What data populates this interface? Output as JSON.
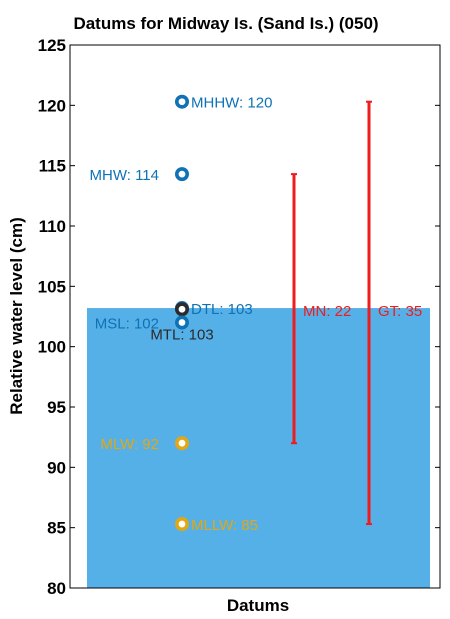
{
  "chart_data": {
    "type": "scatter",
    "title": "Datums for Midway Is. (Sand Is.) (050)",
    "xlabel": "Datums",
    "ylabel": "Relative water level (cm)",
    "ylim": [
      80,
      125
    ],
    "yticks": [
      80,
      85,
      90,
      95,
      100,
      105,
      110,
      115,
      120,
      125
    ],
    "grid": false,
    "background_fill": {
      "level": 103.2,
      "color": "#56b0e8"
    },
    "points": [
      {
        "name": "MHHW",
        "label": "MHHW: 120",
        "y": 120.3,
        "color": "#0e72b5",
        "side": "right"
      },
      {
        "name": "MHW",
        "label": "MHW: 114",
        "y": 114.3,
        "color": "#0e72b5",
        "side": "left"
      },
      {
        "name": "DTL",
        "label": "DTL: 103",
        "y": 103.2,
        "color": "#0e72b5",
        "side": "right"
      },
      {
        "name": "MTL",
        "label": "MTL: 103",
        "y": 103.1,
        "color": "#2b2b2b",
        "side": "below"
      },
      {
        "name": "MSL",
        "label": "MSL: 102",
        "y": 102.0,
        "color": "#0e72b5",
        "side": "left"
      },
      {
        "name": "MLW",
        "label": "MLW: 92",
        "y": 92.0,
        "color": "#e0a814",
        "side": "left"
      },
      {
        "name": "MLLW",
        "label": "MLLW: 85",
        "y": 85.3,
        "color": "#e0a814",
        "side": "right"
      }
    ],
    "ranges": [
      {
        "name": "MN",
        "label": "MN: 22",
        "low": 92.0,
        "high": 114.3,
        "color": "#ee1c1c"
      },
      {
        "name": "GT",
        "label": "GT: 35",
        "low": 85.3,
        "high": 120.3,
        "color": "#ee1c1c"
      }
    ]
  }
}
